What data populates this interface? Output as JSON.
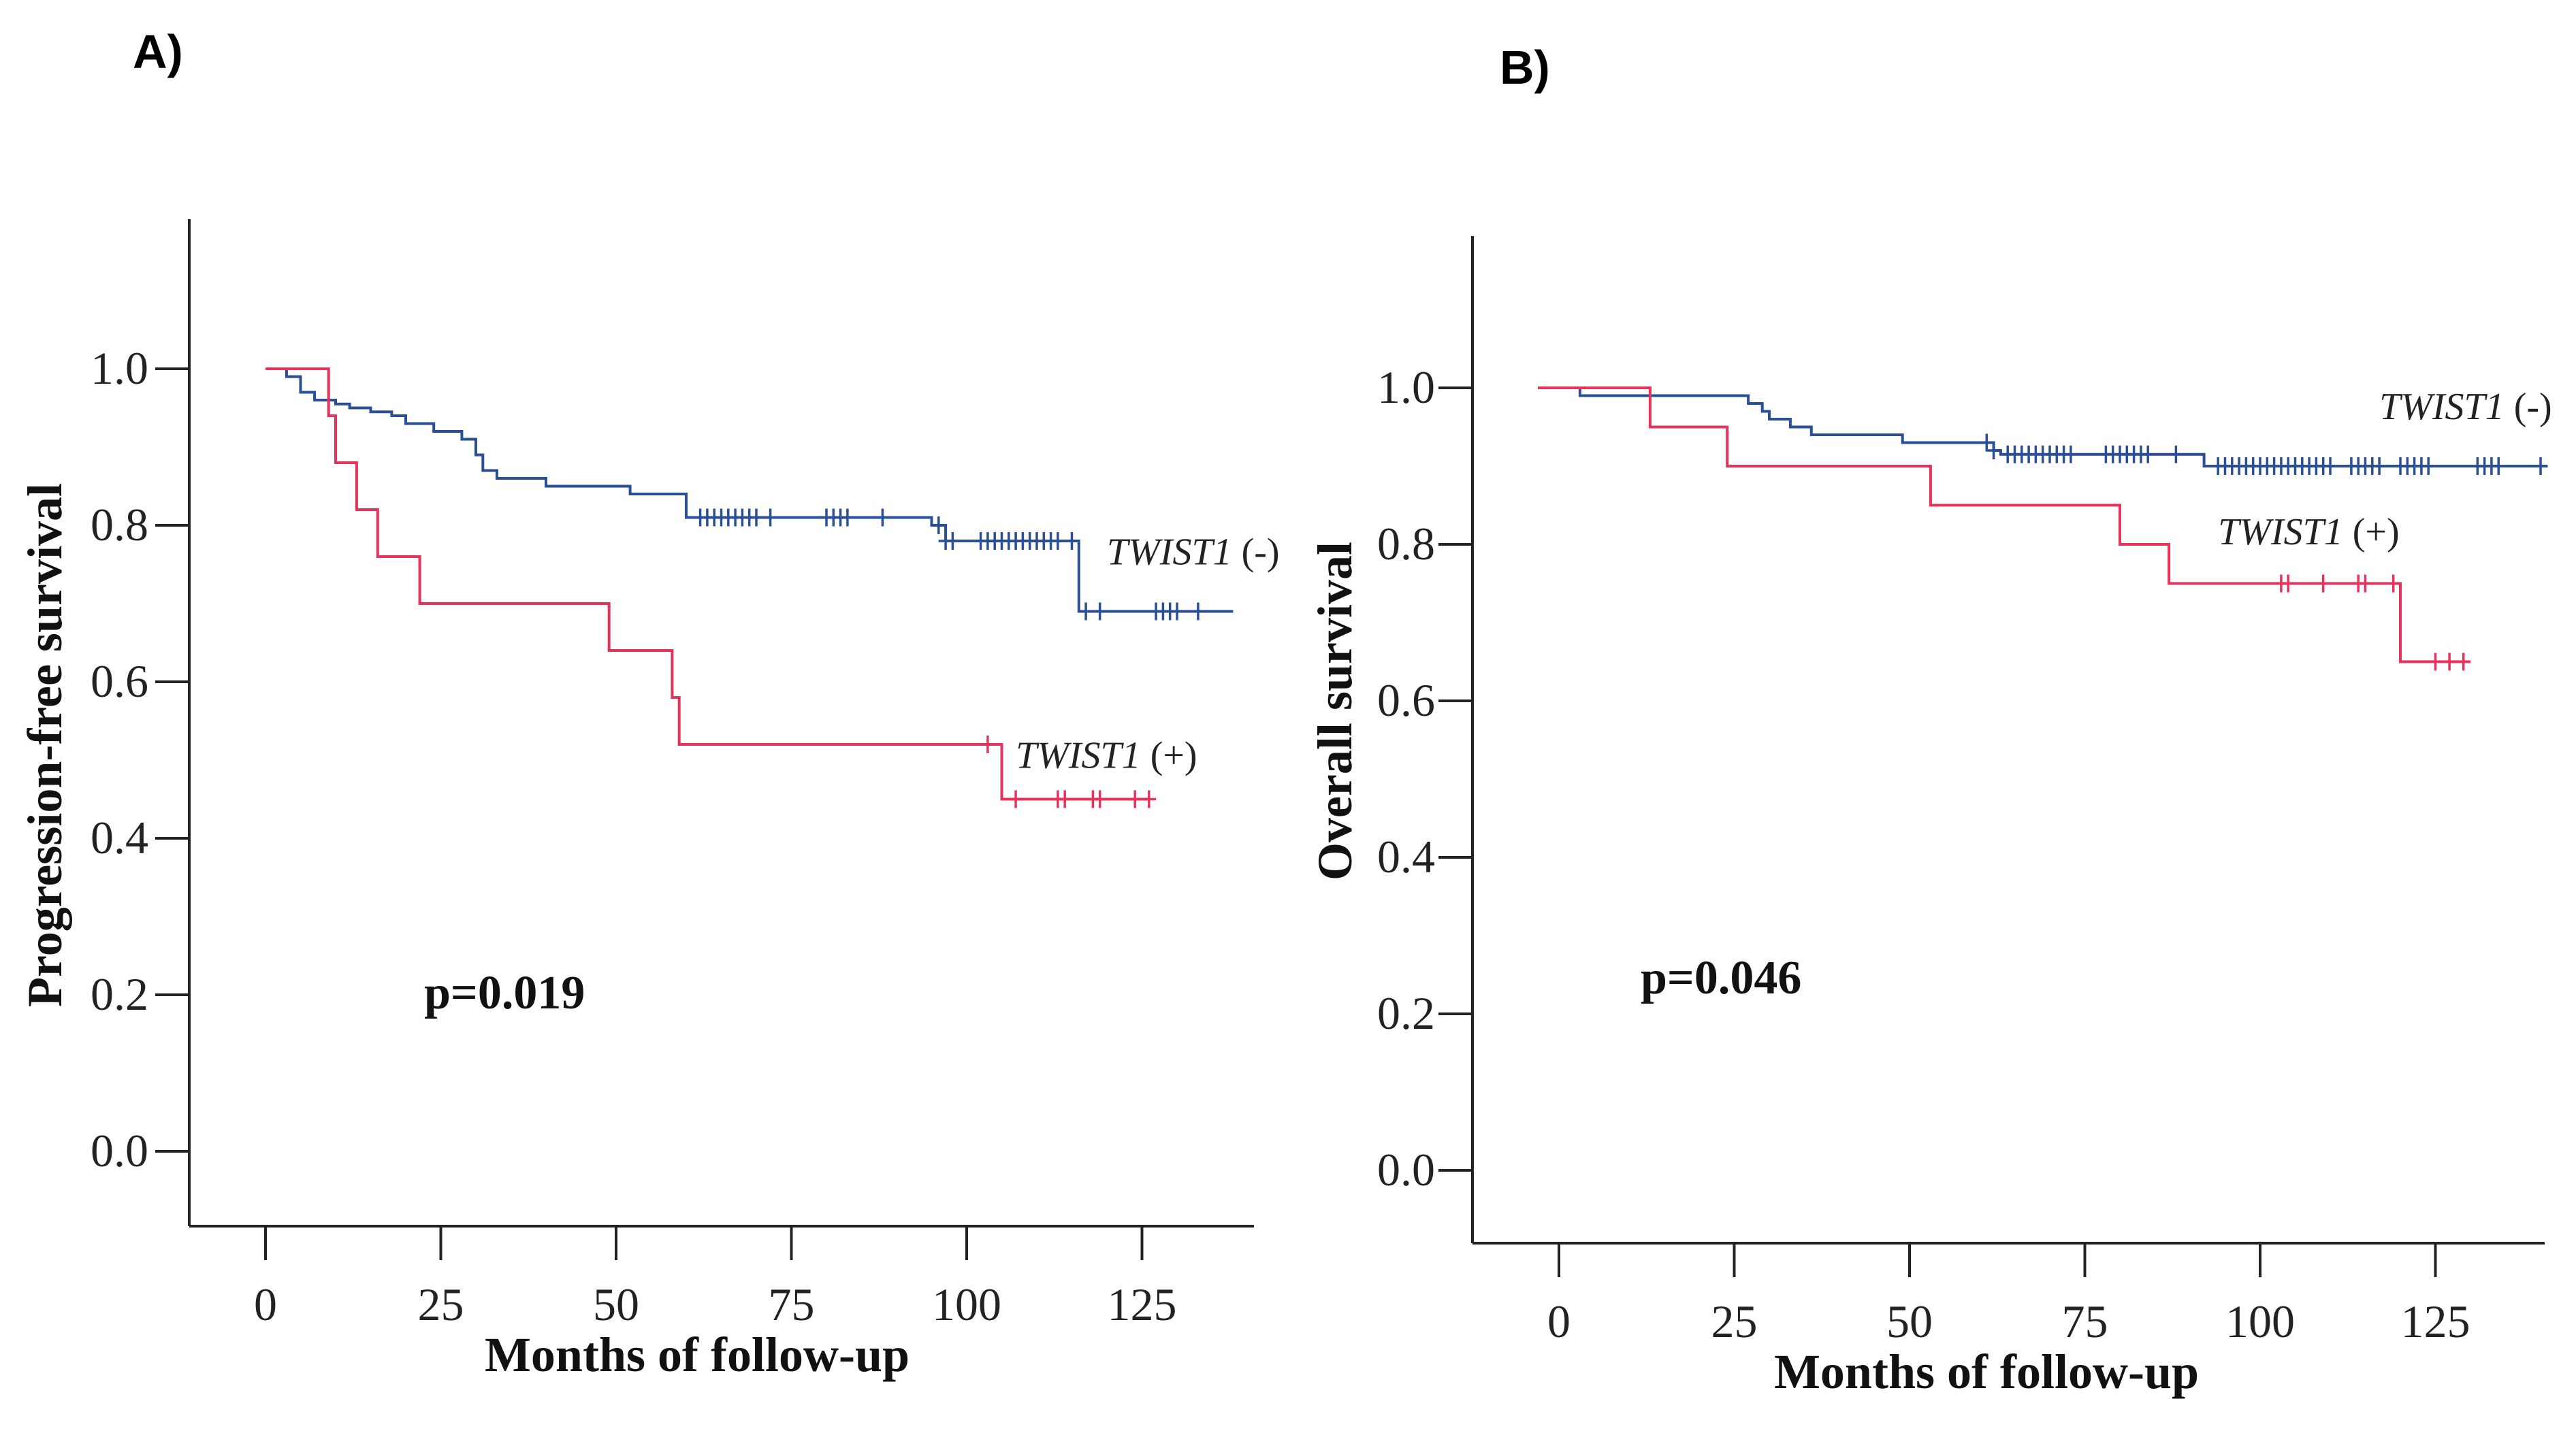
{
  "chart_data": [
    {
      "panel": "A)",
      "type": "line",
      "subtype": "kaplan-meier",
      "xlabel": "Months of follow-up",
      "ylabel": "Progression-free survival",
      "xticks": [
        "0",
        "25",
        "50",
        "75",
        "100",
        "125"
      ],
      "yticks": [
        "0.0",
        "0.2",
        "0.4",
        "0.6",
        "0.8",
        "1.0"
      ],
      "xlim": [
        -11,
        140
      ],
      "ylim": [
        -0.1,
        1.19
      ],
      "annotation": "p=0.019",
      "series": [
        {
          "name": "TWIST1 (-)",
          "label_main": "TWIST1",
          "label_suffix": " (-)",
          "color": "#2a4f96",
          "steps": [
            [
              0,
              1.0
            ],
            [
              3,
              0.99
            ],
            [
              5,
              0.97
            ],
            [
              7,
              0.96
            ],
            [
              10,
              0.955
            ],
            [
              12,
              0.95
            ],
            [
              15,
              0.945
            ],
            [
              18,
              0.94
            ],
            [
              20,
              0.93
            ],
            [
              24,
              0.92
            ],
            [
              28,
              0.91
            ],
            [
              30,
              0.89
            ],
            [
              31,
              0.87
            ],
            [
              33,
              0.86
            ],
            [
              40,
              0.85
            ],
            [
              52,
              0.84
            ],
            [
              60,
              0.81
            ],
            [
              95,
              0.8
            ],
            [
              97,
              0.78
            ],
            [
              116,
              0.69
            ],
            [
              138,
              0.69
            ]
          ],
          "censor_x": [
            62,
            63,
            64,
            65,
            66,
            67,
            68,
            69,
            70,
            72,
            80,
            81,
            82,
            83,
            88,
            96,
            97,
            98,
            102,
            103,
            104,
            105,
            106,
            107,
            108,
            109,
            110,
            111,
            112,
            113,
            115,
            117,
            119,
            127,
            128,
            129,
            130,
            133
          ],
          "label_anchor": [
            120,
            0.75
          ]
        },
        {
          "name": "TWIST1 (+)",
          "label_main": "TWIST1",
          "label_suffix": " (+)",
          "color": "#e6335c",
          "steps": [
            [
              0,
              1.0
            ],
            [
              9,
              0.94
            ],
            [
              10,
              0.88
            ],
            [
              13,
              0.82
            ],
            [
              16,
              0.76
            ],
            [
              22,
              0.7
            ],
            [
              49,
              0.64
            ],
            [
              58,
              0.58
            ],
            [
              59,
              0.52
            ],
            [
              105,
              0.45
            ],
            [
              126,
              0.45
            ]
          ],
          "censor_x": [
            103,
            107,
            113,
            114,
            118,
            119,
            124,
            126
          ],
          "label_anchor": [
            107,
            0.49
          ]
        }
      ]
    },
    {
      "panel": "B)",
      "type": "line",
      "subtype": "kaplan-meier",
      "xlabel": "Months of follow-up",
      "ylabel": "Overall survival",
      "xticks": [
        "0",
        "25",
        "50",
        "75",
        "100",
        "125"
      ],
      "yticks": [
        "0.0",
        "0.2",
        "0.4",
        "0.6",
        "0.8",
        "1.0"
      ],
      "xlim": [
        -12,
        141
      ],
      "ylim": [
        -0.09,
        1.16
      ],
      "annotation": "p=0.046",
      "series": [
        {
          "name": "TWIST1 (-)",
          "label_main": "TWIST1",
          "label_suffix": " (-)",
          "color": "#2a4f96",
          "steps": [
            [
              -3,
              1.0
            ],
            [
              3,
              0.99
            ],
            [
              27,
              0.98
            ],
            [
              29,
              0.97
            ],
            [
              30,
              0.96
            ],
            [
              33,
              0.95
            ],
            [
              36,
              0.94
            ],
            [
              49,
              0.93
            ],
            [
              62,
              0.92
            ],
            [
              63,
              0.915
            ],
            [
              92,
              0.9
            ],
            [
              141,
              0.9
            ]
          ],
          "censor_x": [
            61,
            62,
            64,
            65,
            66,
            67,
            68,
            69,
            70,
            71,
            72,
            73,
            78,
            79,
            80,
            81,
            82,
            83,
            84,
            88,
            94,
            95,
            96,
            97,
            98,
            99,
            100,
            101,
            102,
            103,
            104,
            105,
            106,
            107,
            108,
            109,
            110,
            113,
            114,
            115,
            116,
            117,
            120,
            121,
            122,
            123,
            124,
            131,
            132,
            133,
            134,
            140
          ],
          "label_anchor": [
            117,
            0.96
          ]
        },
        {
          "name": "TWIST1 (+)",
          "label_main": "TWIST1",
          "label_suffix": " (+)",
          "color": "#e6335c",
          "steps": [
            [
              -3,
              1.0
            ],
            [
              13,
              0.95
            ],
            [
              24,
              0.9
            ],
            [
              53,
              0.85
            ],
            [
              80,
              0.8
            ],
            [
              87,
              0.75
            ],
            [
              120,
              0.65
            ],
            [
              130,
              0.65
            ]
          ],
          "censor_x": [
            103,
            104,
            109,
            114,
            115,
            119,
            125,
            127,
            129
          ],
          "label_anchor": [
            94,
            0.8
          ]
        }
      ]
    }
  ]
}
